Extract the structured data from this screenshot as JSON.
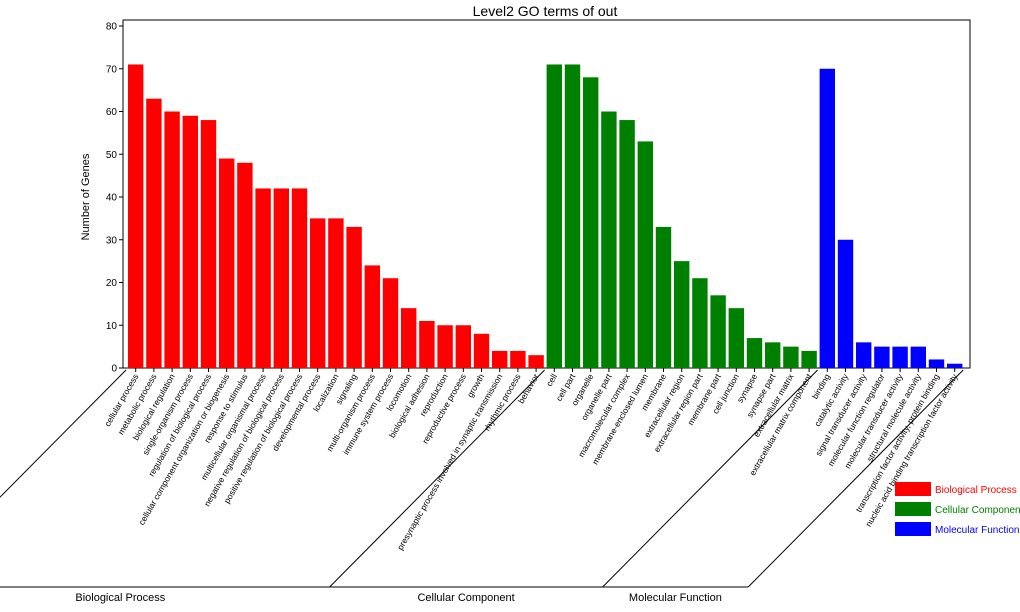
{
  "chart_data": {
    "type": "bar",
    "title": "Level2 GO terms of out",
    "ylabel": "Number of Genes",
    "xlabel": "",
    "ylim": [
      0,
      80
    ],
    "yticks": [
      0,
      10,
      20,
      30,
      40,
      50,
      60,
      70,
      80
    ],
    "grid": false,
    "legend_position": "bottom-right",
    "series": [
      {
        "name": "Biological Process",
        "color": "#ff0000",
        "categories": [
          "cellular process",
          "metabolic process",
          "biological regulation",
          "single-organism process",
          "regulation of biological process",
          "cellular component organization or biogenesis",
          "response to stimulus",
          "multicellular organismal process",
          "negative regulation of biological process",
          "positive regulation of biological process",
          "developmental process",
          "localization",
          "signaling",
          "multi-organism process",
          "immune system process",
          "locomotion",
          "biological adhesion",
          "reproduction",
          "reproductive process",
          "growth",
          "presynaptic process involved in synaptic transmission",
          "rhythmic process",
          "behavior"
        ],
        "values": [
          71,
          63,
          60,
          59,
          58,
          49,
          48,
          42,
          42,
          42,
          35,
          35,
          33,
          24,
          21,
          14,
          11,
          10,
          10,
          8,
          4,
          4,
          3
        ]
      },
      {
        "name": "Cellular Component",
        "color": "#008000",
        "categories": [
          "cell",
          "cell part",
          "organelle",
          "organelle part",
          "macromolecular complex",
          "membrane-enclosed lumen",
          "membrane",
          "extracellular region",
          "extracellular region part",
          "membrane part",
          "cell junction",
          "synapse",
          "synapse part",
          "extracellular matrix",
          "extracellular matrix component"
        ],
        "values": [
          71,
          71,
          68,
          60,
          58,
          53,
          33,
          25,
          21,
          17,
          14,
          7,
          6,
          5,
          4
        ]
      },
      {
        "name": "Molecular Function",
        "color": "#0000ff",
        "categories": [
          "binding",
          "catalytic activity",
          "signal transducer activity",
          "molecular function regulator",
          "molecular transducer activity",
          "structural molecule activity",
          "transcription factor activity, protein binding",
          "nucleic acid binding transcription factor activity"
        ],
        "values": [
          70,
          30,
          6,
          5,
          5,
          5,
          2,
          1
        ]
      }
    ],
    "groups": [
      "Biological Process",
      "Cellular Component",
      "Molecular Function"
    ],
    "legend": [
      "Biological Process",
      "Cellular Component",
      "Molecular Function"
    ]
  }
}
